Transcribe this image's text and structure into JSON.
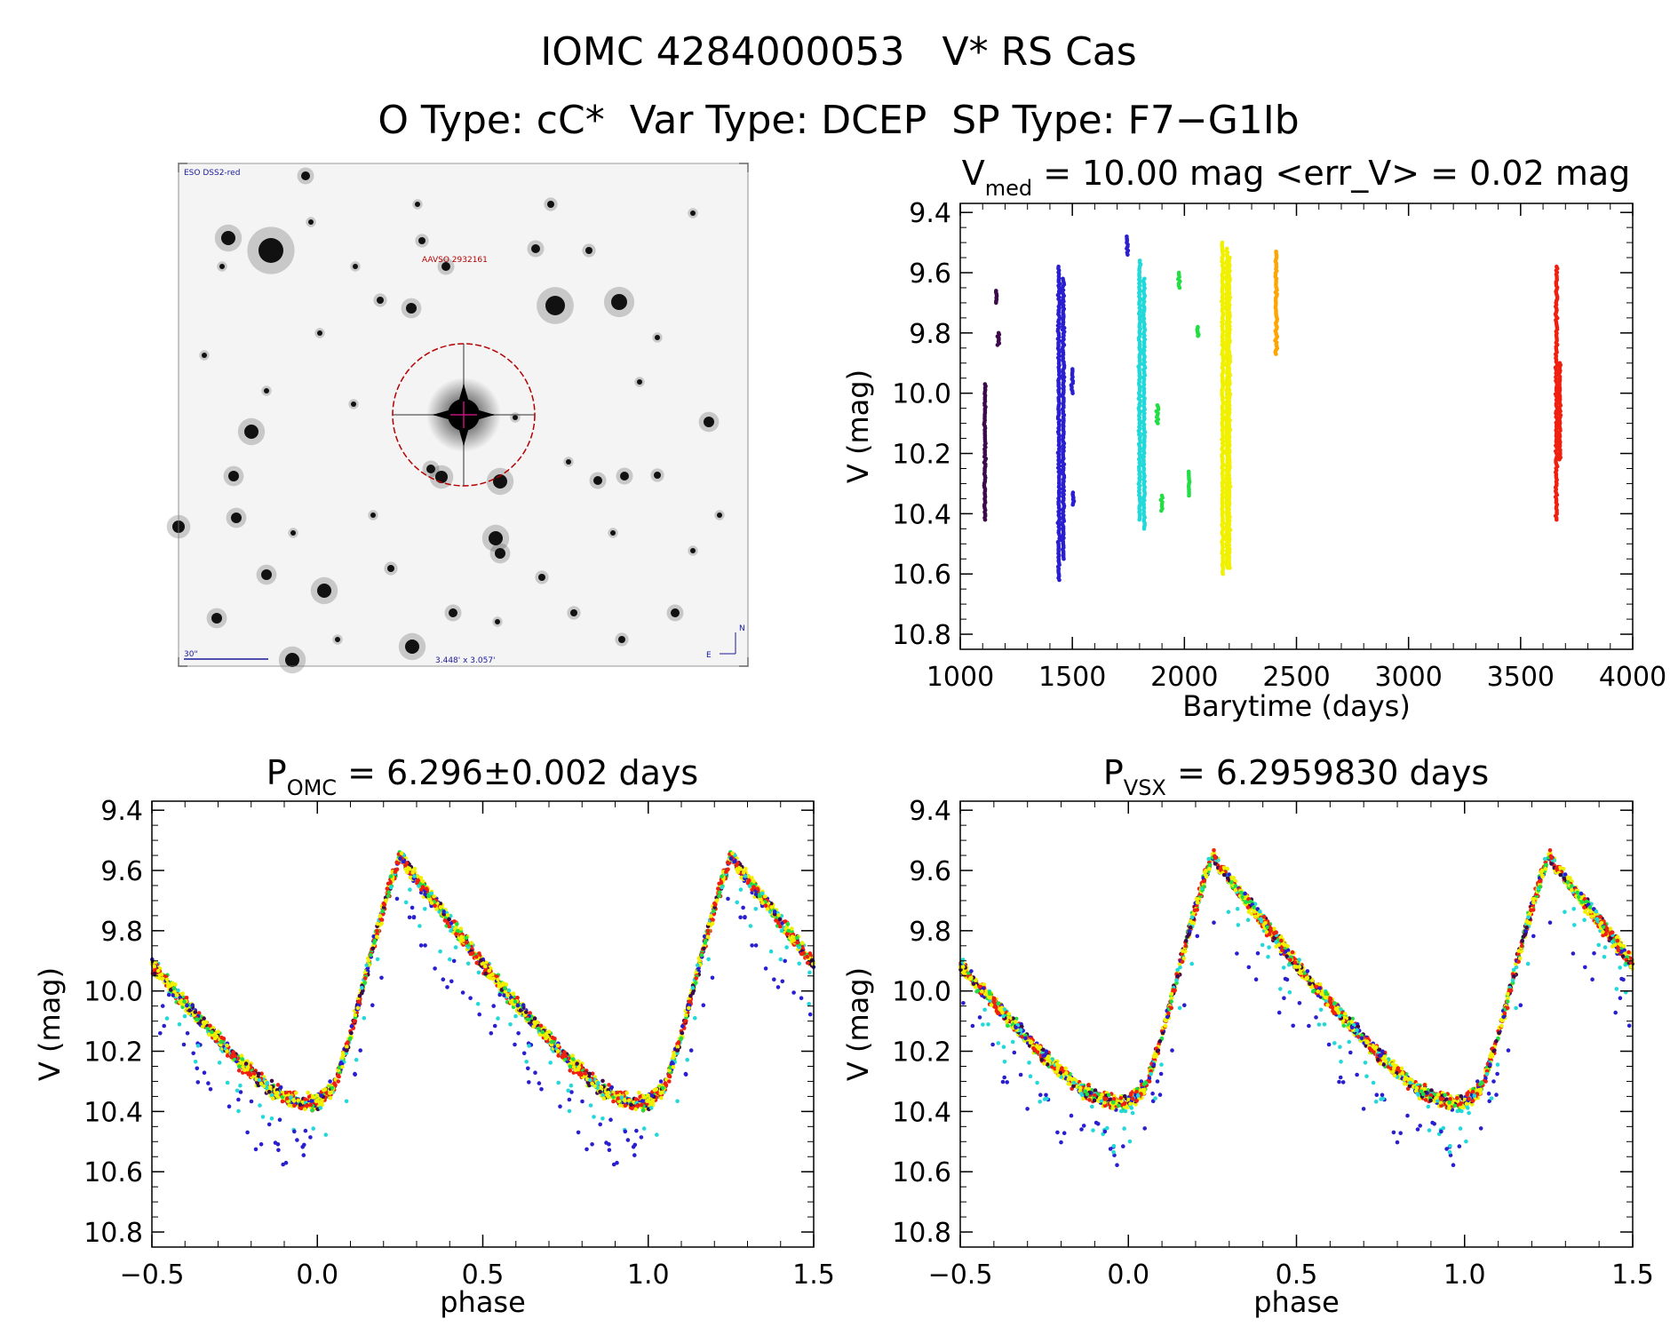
{
  "header": {
    "title": "IOMC 4284000053   V* RS Cas",
    "subtitle": "O Type: cC*  Var Type: DCEP  SP Type: F7−G1Ib"
  },
  "sky_image": {
    "survey_label": "ESO DSS2-red",
    "target_label": "AAVSO 2932161",
    "scale_label": "30\"",
    "fov_label": "3.448' x 3.057'",
    "compass_n": "N",
    "compass_e": "E"
  },
  "colors": {
    "black_purple": "#3c0a4a",
    "blue": "#2a1fd0",
    "cyan": "#22d8d8",
    "green": "#22dd44",
    "yellow": "#f0f000",
    "orange": "#ffa500",
    "red": "#f02010",
    "circle": "#b40000",
    "crosshair": "#c0107a"
  },
  "chart_data": [
    {
      "type": "scatter",
      "id": "light-curve",
      "title_main": "V",
      "title_sub": "med",
      "title_rest": " = 10.00 mag <err_V> = 0.02 mag",
      "xlabel": "Barytime (days)",
      "ylabel": "V (mag)",
      "xlim": [
        1000,
        4000
      ],
      "ylim": [
        10.85,
        9.37
      ],
      "xticks": [
        "1000",
        "1500",
        "2000",
        "2500",
        "3000",
        "3500",
        "4000"
      ],
      "xtick_values": [
        1000,
        1500,
        2000,
        2500,
        3000,
        3500,
        4000
      ],
      "yticks": [
        "9.4",
        "9.6",
        "9.8",
        "10.0",
        "10.2",
        "10.4",
        "10.6",
        "10.8"
      ],
      "ytick_values": [
        9.4,
        9.6,
        9.8,
        10.0,
        10.2,
        10.4,
        10.6,
        10.8
      ],
      "series": [
        {
          "color": "black_purple",
          "segments": [
            [
              1110,
              9.97,
              10.42
            ],
            [
              1160,
              9.66,
              9.7
            ],
            [
              1170,
              9.8,
              9.84
            ]
          ]
        },
        {
          "color": "blue",
          "segments": [
            [
              1440,
              9.58,
              10.62
            ],
            [
              1460,
              9.62,
              10.55
            ],
            [
              1500,
              9.92,
              10.0
            ],
            [
              1505,
              10.33,
              10.37
            ]
          ]
        },
        {
          "color": "blue",
          "segments": [
            [
              1745,
              9.48,
              9.54
            ]
          ]
        },
        {
          "color": "cyan",
          "segments": [
            [
              1800,
              9.56,
              10.42
            ],
            [
              1820,
              9.62,
              10.45
            ]
          ]
        },
        {
          "color": "green",
          "segments": [
            [
              1880,
              10.04,
              10.1
            ],
            [
              1900,
              10.34,
              10.39
            ],
            [
              1975,
              9.6,
              9.65
            ],
            [
              2020,
              10.26,
              10.34
            ],
            [
              2060,
              9.78,
              9.81
            ]
          ]
        },
        {
          "color": "yellow",
          "segments": [
            [
              2170,
              9.5,
              10.6
            ],
            [
              2190,
              9.52,
              10.58
            ],
            [
              2200,
              9.55,
              10.58
            ]
          ]
        },
        {
          "color": "orange",
          "segments": [
            [
              2410,
              9.53,
              9.87
            ]
          ]
        },
        {
          "color": "red",
          "segments": [
            [
              3660,
              9.58,
              10.42
            ],
            [
              3675,
              9.9,
              10.22
            ]
          ]
        }
      ]
    },
    {
      "type": "scatter",
      "id": "phase-omc",
      "title_main": "P",
      "title_sub": "OMC",
      "title_rest": " = 6.296±0.002 days",
      "xlabel": "phase",
      "ylabel": "V (mag)",
      "xlim": [
        -0.5,
        1.5
      ],
      "ylim": [
        10.85,
        9.37
      ],
      "xticks": [
        "−0.5",
        "0.0",
        "0.5",
        "1.0",
        "1.5"
      ],
      "xtick_values": [
        -0.5,
        0.0,
        0.5,
        1.0,
        1.5
      ],
      "yticks": [
        "9.4",
        "9.6",
        "9.8",
        "10.0",
        "10.2",
        "10.4",
        "10.6",
        "10.8"
      ],
      "ytick_values": [
        9.4,
        9.6,
        9.8,
        10.0,
        10.2,
        10.4,
        10.6,
        10.8
      ],
      "curve": {
        "phase": [
          0.0,
          0.05,
          0.1,
          0.15,
          0.2,
          0.25,
          0.3,
          0.35,
          0.4,
          0.45,
          0.5,
          0.55,
          0.6,
          0.65,
          0.7,
          0.75,
          0.8,
          0.85,
          0.9,
          0.95,
          1.0
        ],
        "mag": [
          10.37,
          10.32,
          10.15,
          9.93,
          9.72,
          9.55,
          9.63,
          9.7,
          9.77,
          9.84,
          9.91,
          9.98,
          10.04,
          10.1,
          10.16,
          10.22,
          10.27,
          10.32,
          10.35,
          10.37,
          10.37
        ]
      }
    },
    {
      "type": "scatter",
      "id": "phase-vsx",
      "title_main": "P",
      "title_sub": "VSX",
      "title_rest": " = 6.2959830 days",
      "xlabel": "phase",
      "ylabel": "V (mag)",
      "xlim": [
        -0.5,
        1.5
      ],
      "ylim": [
        10.85,
        9.37
      ],
      "xticks": [
        "−0.5",
        "0.0",
        "0.5",
        "1.0",
        "1.5"
      ],
      "xtick_values": [
        -0.5,
        0.0,
        0.5,
        1.0,
        1.5
      ],
      "yticks": [
        "9.4",
        "9.6",
        "9.8",
        "10.0",
        "10.2",
        "10.4",
        "10.6",
        "10.8"
      ],
      "ytick_values": [
        9.4,
        9.6,
        9.8,
        10.0,
        10.2,
        10.4,
        10.6,
        10.8
      ],
      "curve": {
        "phase": [
          0.0,
          0.05,
          0.1,
          0.15,
          0.2,
          0.25,
          0.3,
          0.35,
          0.4,
          0.45,
          0.5,
          0.55,
          0.6,
          0.65,
          0.7,
          0.75,
          0.8,
          0.85,
          0.9,
          0.95,
          1.0
        ],
        "mag": [
          10.37,
          10.32,
          10.15,
          9.93,
          9.72,
          9.55,
          9.63,
          9.7,
          9.77,
          9.84,
          9.91,
          9.98,
          10.04,
          10.1,
          10.16,
          10.22,
          10.27,
          10.32,
          10.35,
          10.37,
          10.37
        ]
      }
    }
  ]
}
